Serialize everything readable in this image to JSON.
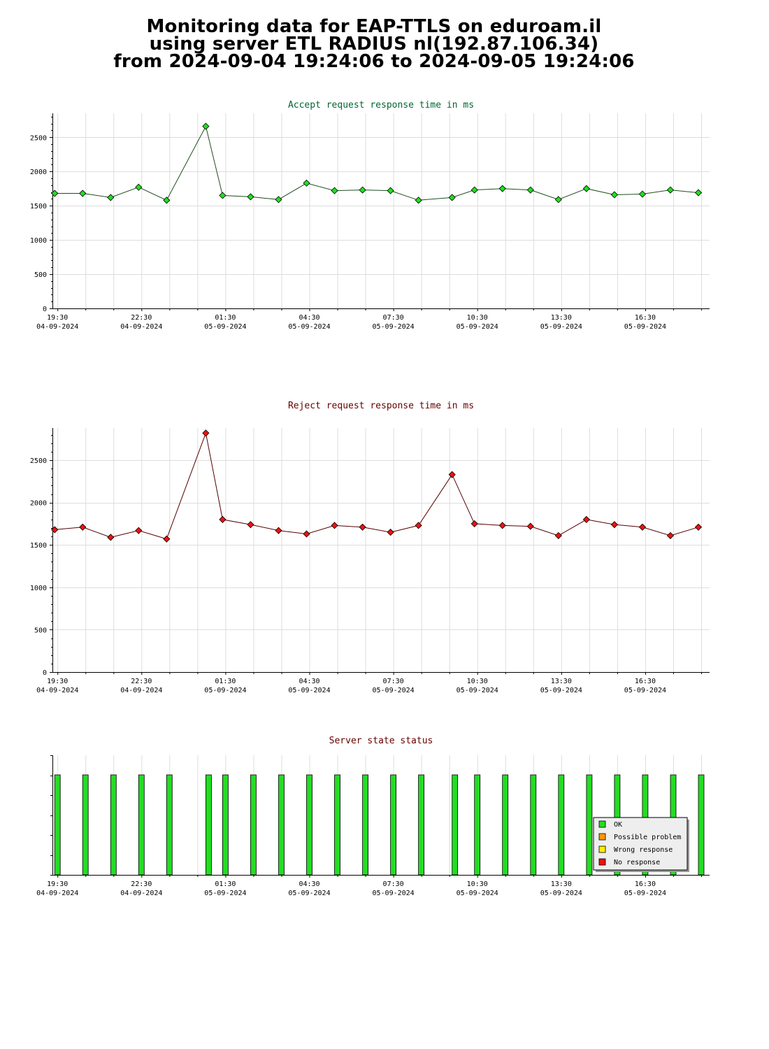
{
  "page": {
    "title_lines": [
      "Monitoring data for EAP-TTLS on eduroam.il",
      "using server ETL RADIUS nl(192.87.106.34)",
      "from 2024-09-04 19:24:06 to 2024-09-05 19:24:06"
    ]
  },
  "time_axis": {
    "ticks": [
      {
        "time": "19:30",
        "date": "04-09-2024"
      },
      {
        "time": "22:30",
        "date": "04-09-2024"
      },
      {
        "time": "01:30",
        "date": "05-09-2024"
      },
      {
        "time": "04:30",
        "date": "05-09-2024"
      },
      {
        "time": "07:30",
        "date": "05-09-2024"
      },
      {
        "time": "10:30",
        "date": "05-09-2024"
      },
      {
        "time": "13:30",
        "date": "05-09-2024"
      },
      {
        "time": "16:30",
        "date": "05-09-2024"
      }
    ]
  },
  "chart_data": [
    {
      "type": "line",
      "title": "Accept request response time in ms",
      "title_color": "#006633",
      "line_color": "#1f4f1f",
      "marker_color": "#22dd22",
      "grid": true,
      "ylim": [
        0,
        2850
      ],
      "yticks": [
        0,
        500,
        1000,
        1500,
        2000,
        2500
      ],
      "x_unit": "hours after 2024-09-04 19:30",
      "x": [
        -0.1,
        0.9,
        1.9,
        2.9,
        3.9,
        5.3,
        5.9,
        6.9,
        7.9,
        8.9,
        9.9,
        10.9,
        11.9,
        12.9,
        14.1,
        14.9,
        15.9,
        16.9,
        17.9,
        18.9,
        19.9,
        20.9,
        21.9,
        22.9
      ],
      "values": [
        1680,
        1680,
        1620,
        1770,
        1580,
        2660,
        1650,
        1630,
        1590,
        1830,
        1720,
        1730,
        1720,
        1580,
        1620,
        1730,
        1750,
        1730,
        1590,
        1750,
        1660,
        1670,
        1730,
        1690
      ]
    },
    {
      "type": "line",
      "title": "Reject request response time in ms",
      "title_color": "#660000",
      "line_color": "#550000",
      "marker_color": "#ee1111",
      "grid": true,
      "ylim": [
        0,
        2880
      ],
      "yticks": [
        0,
        500,
        1000,
        1500,
        2000,
        2500
      ],
      "x_unit": "hours after 2024-09-04 19:30",
      "x": [
        -0.1,
        0.9,
        1.9,
        2.9,
        3.9,
        5.3,
        5.9,
        6.9,
        7.9,
        8.9,
        9.9,
        10.9,
        11.9,
        12.9,
        14.1,
        14.9,
        15.9,
        16.9,
        17.9,
        18.9,
        19.9,
        20.9,
        21.9,
        22.9
      ],
      "values": [
        1680,
        1710,
        1590,
        1670,
        1570,
        2820,
        1800,
        1740,
        1670,
        1630,
        1730,
        1710,
        1650,
        1730,
        2330,
        1750,
        1730,
        1720,
        1610,
        1800,
        1740,
        1710,
        1610,
        1710
      ]
    },
    {
      "type": "bar",
      "title": "Server state status",
      "title_color": "#660000",
      "x_unit": "hours after 2024-09-04 19:30",
      "x": [
        -0.1,
        0.9,
        1.9,
        2.9,
        3.9,
        5.3,
        5.9,
        6.9,
        7.9,
        8.9,
        9.9,
        10.9,
        11.9,
        12.9,
        14.1,
        14.9,
        15.9,
        16.9,
        17.9,
        18.9,
        19.9,
        20.9,
        21.9,
        22.9
      ],
      "status": [
        "OK",
        "OK",
        "OK",
        "OK",
        "OK",
        "OK",
        "OK",
        "OK",
        "OK",
        "OK",
        "OK",
        "OK",
        "OK",
        "OK",
        "OK",
        "OK",
        "OK",
        "OK",
        "OK",
        "OK",
        "OK",
        "OK",
        "OK",
        "OK"
      ],
      "legend": [
        {
          "label": "OK",
          "color": "#22dd22"
        },
        {
          "label": "Possible problem",
          "color": "#ff9900"
        },
        {
          "label": "Wrong response",
          "color": "#ffee00"
        },
        {
          "label": "No response",
          "color": "#ee1111"
        }
      ],
      "legend_position": "bottom-right"
    }
  ]
}
